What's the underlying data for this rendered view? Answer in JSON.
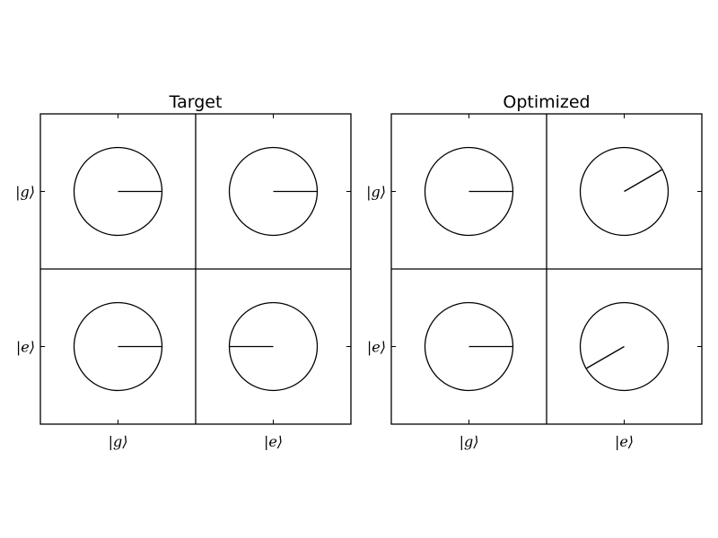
{
  "chart_data": [
    {
      "type": "phasor-matrix",
      "title": "Target",
      "row_labels": [
        "|g⟩",
        "|e⟩"
      ],
      "col_labels": [
        "|g⟩",
        "|e⟩"
      ],
      "cells": [
        [
          {
            "magnitude": 1.0,
            "phase_deg": 0
          },
          {
            "magnitude": 1.0,
            "phase_deg": 0
          }
        ],
        [
          {
            "magnitude": 1.0,
            "phase_deg": 0
          },
          {
            "magnitude": 1.0,
            "phase_deg": 180
          }
        ]
      ]
    },
    {
      "type": "phasor-matrix",
      "title": "Optimized",
      "row_labels": [
        "|g⟩",
        "|e⟩"
      ],
      "col_labels": [
        "|g⟩",
        "|e⟩"
      ],
      "cells": [
        [
          {
            "magnitude": 1.0,
            "phase_deg": 0
          },
          {
            "magnitude": 1.0,
            "phase_deg": 30
          }
        ],
        [
          {
            "magnitude": 1.0,
            "phase_deg": 0
          },
          {
            "magnitude": 1.0,
            "phase_deg": 210
          }
        ]
      ]
    }
  ],
  "colors": {
    "line": "#000000",
    "background": "#ffffff"
  }
}
